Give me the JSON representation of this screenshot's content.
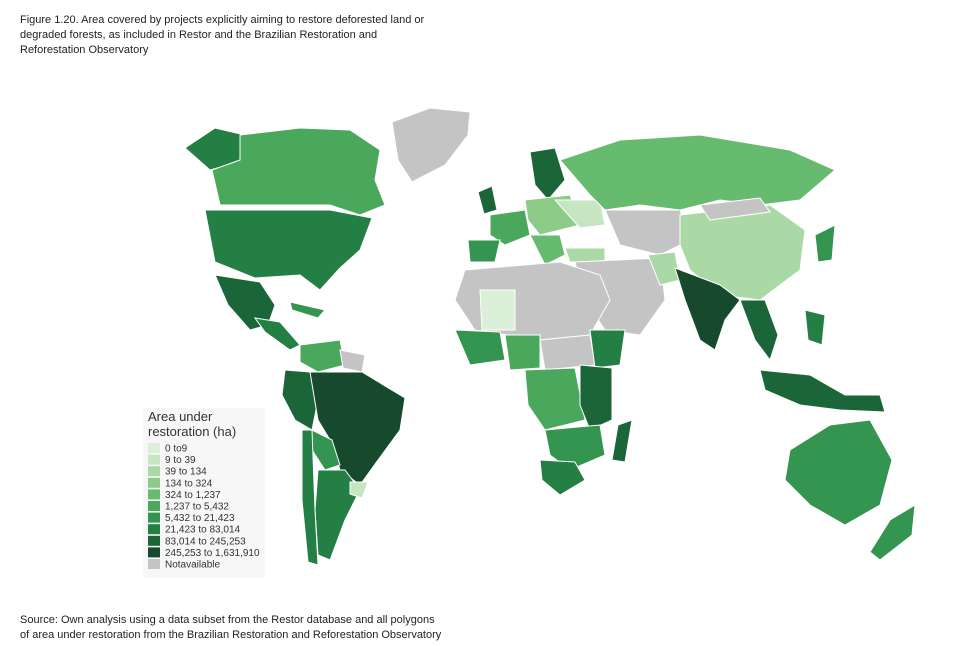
{
  "header": {
    "title_lines": [
      "Figure 1.20. Area covered by projects explicitly aiming to restore deforested land or",
      "degraded forests, as included in Restor and the Brazilian Restoration and",
      "Reforestation Observatory"
    ]
  },
  "legend": {
    "title_lines": [
      "Area under",
      "restoration (ha)"
    ],
    "items": [
      {
        "label": "0 to9",
        "color": "#dcefd9"
      },
      {
        "label": "9 to 39",
        "color": "#c6e6c2"
      },
      {
        "label": "39 to 134",
        "color": "#abd9a5"
      },
      {
        "label": "134 to 324",
        "color": "#8dcb89"
      },
      {
        "label": "324 to 1,237",
        "color": "#67bb6f"
      },
      {
        "label": "1,237 to 5,432",
        "color": "#4aa85d"
      },
      {
        "label": "5,432 to 21,423",
        "color": "#33954f"
      },
      {
        "label": "21,423  to 83,014",
        "color": "#237f44"
      },
      {
        "label": "83,014 to 245,253",
        "color": "#1b6638"
      },
      {
        "label": "245,253 to 1,631,910",
        "color": "#17492c"
      },
      {
        "label": "Notavailable",
        "color": "#c4c4c4"
      }
    ]
  },
  "footer": {
    "source_lines": [
      "Source: Own analysis using a data subset from the Restor database and all polygons",
      "of area under restoration from the Brazilian Restoration and Reforestation Observatory"
    ]
  }
}
